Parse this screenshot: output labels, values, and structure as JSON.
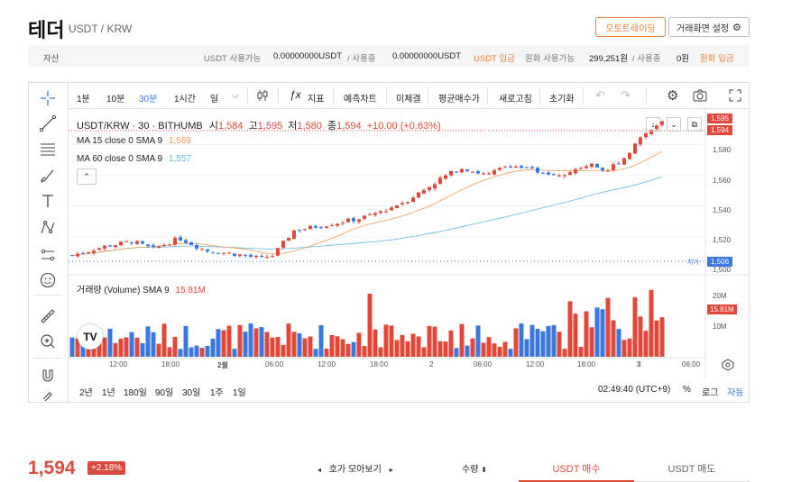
{
  "header": {
    "title": "테더",
    "pair": "USDT / KRW",
    "auto_trade": "오토트레이딩",
    "screen_settings": "거래화면 설정"
  },
  "assets": {
    "label": "자산",
    "usdt_available_label": "USDT 사용가능",
    "usdt_available": "0.00000000USDT",
    "usdt_inuse_label": "/ 사용중",
    "usdt_inuse": "0.00000000USDT",
    "usdt_deposit": "USDT 입금",
    "krw_available_label": "원화 사용가능",
    "krw_available": "299,251원",
    "krw_inuse_label": "/ 사용중",
    "krw_inuse": "0원",
    "krw_deposit": "원화 입금"
  },
  "toolbar": {
    "intervals": [
      "1분",
      "10분",
      "30분",
      "1시간",
      "일"
    ],
    "active_interval": "30분",
    "indicators": "지표",
    "forecast": "예측차트",
    "fine": "미체결",
    "avg_price": "평균매수가",
    "refresh": "새로고침",
    "reset": "초기화"
  },
  "chart": {
    "symbol_line": "USDT/KRW · 30 · BITHUMB",
    "open_label": "시",
    "open": "1,584",
    "high_label": "고",
    "high": "1,595",
    "low_label": "저",
    "low": "1,580",
    "close_label": "종",
    "close": "1,594",
    "change": "+10.00 (+0.63%)",
    "ma15_label": "MA 15 close 0 SMA 9",
    "ma15_value": "1,569",
    "ma60_label": "MA 60 close 0 SMA 9",
    "ma60_value": "1,557",
    "volume_label": "거래량 (Volume) SMA 9",
    "volume_value": "15.81M",
    "low_marker": "저가",
    "price_ticks": [
      "1,580",
      "1,560",
      "1,540",
      "1,520",
      "1,500"
    ],
    "price_tag_high": "1,595",
    "price_tag_last": "1,594",
    "price_tag_low": "1,506",
    "volume_ticks": [
      "20M",
      "10M"
    ],
    "volume_tag": "15.81M",
    "time_ticks": [
      "12:00",
      "18:00",
      "2월",
      "06:00",
      "12:00",
      "18:00",
      "2",
      "06:00",
      "12:00",
      "18:00",
      "3",
      "06:00"
    ],
    "colors": {
      "up": "#e0483a",
      "down": "#3a78e0",
      "ma15": "#f29b55",
      "ma60": "#62b8e8"
    }
  },
  "chart_data": {
    "type": "bar",
    "title": "USDT/KRW · 30 · BITHUMB",
    "ylim": [
      1500,
      1595
    ],
    "series": [
      {
        "name": "MA 15 close 0 SMA 9",
        "last": 1569
      },
      {
        "name": "MA 60 close 0 SMA 9",
        "last": 1557
      }
    ]
  },
  "ranges": [
    "2년",
    "1년",
    "180일",
    "90일",
    "30일",
    "1주",
    "1일"
  ],
  "bottom": {
    "time": "02:49:40 (UTC+9)",
    "percent": "%",
    "log": "로그",
    "auto": "자동"
  },
  "footer": {
    "price": "1,594",
    "change": "+2.18%",
    "orderbook": "호가 모아보기",
    "qty": "수량",
    "buy_tab": "USDT 매수",
    "sell_tab": "USDT 매도"
  }
}
